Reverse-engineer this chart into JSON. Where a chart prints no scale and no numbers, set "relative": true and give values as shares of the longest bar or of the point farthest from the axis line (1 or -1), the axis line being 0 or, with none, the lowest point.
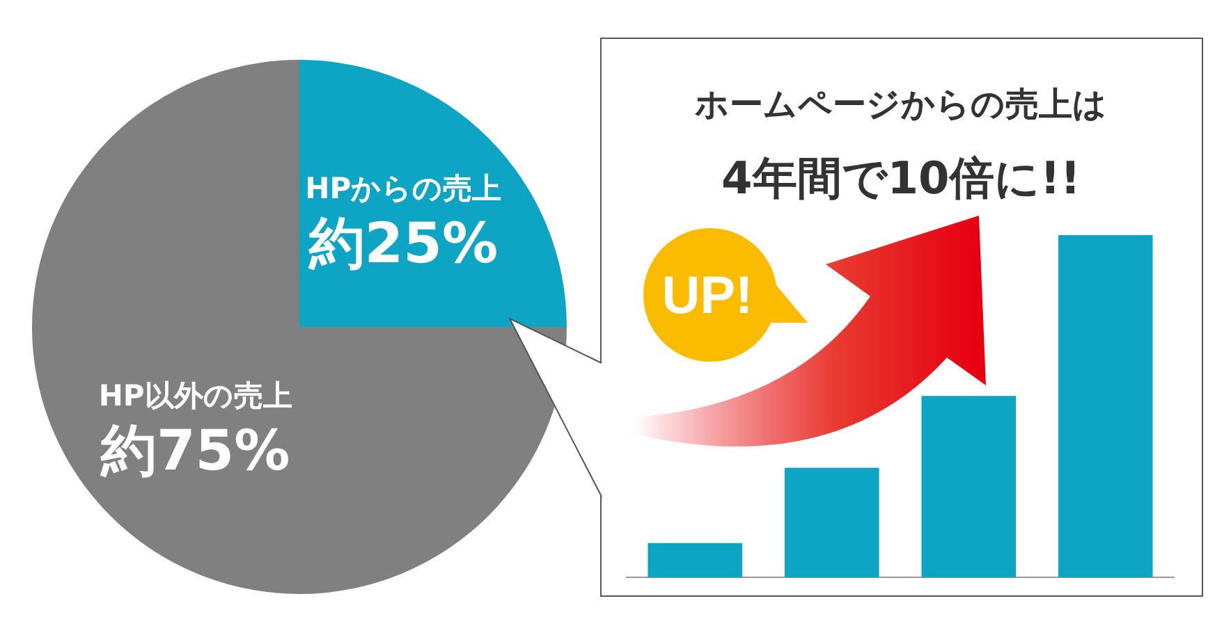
{
  "chart_data": [
    {
      "type": "pie",
      "categories": [
        "HPからの売上",
        "HP以外の売上"
      ],
      "values": [
        25,
        75
      ],
      "colors": [
        "#0ea5c4",
        "#808080"
      ],
      "value_labels": [
        "約25%",
        "約75%"
      ],
      "legend": false
    },
    {
      "type": "bar",
      "title": "ホームページからの売上は",
      "subtitle": "4年間で10倍に!!",
      "categories": [
        null,
        null,
        null,
        null
      ],
      "values": [
        0.1,
        0.32,
        0.53,
        1
      ],
      "color": "#0ea5c4",
      "relative": true,
      "annotations": [
        "UP!"
      ],
      "legend": false
    }
  ]
}
